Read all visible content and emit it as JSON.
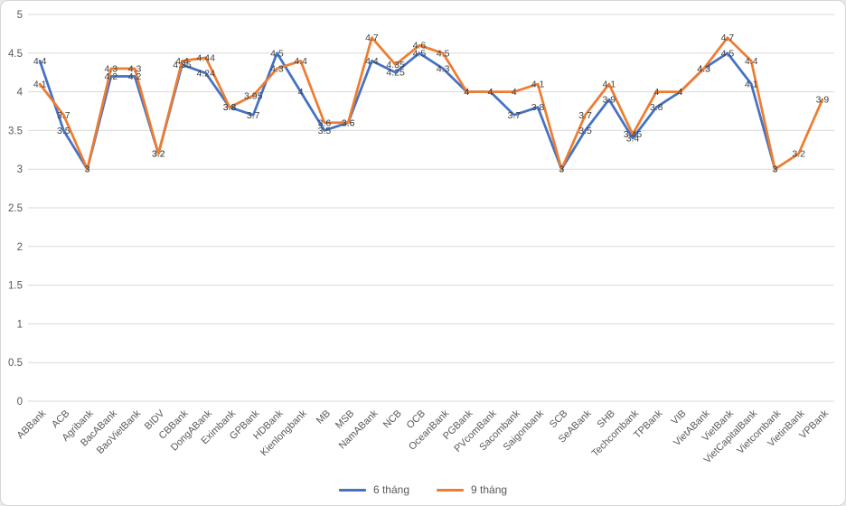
{
  "chart_data": {
    "type": "line",
    "title": "",
    "xlabel": "",
    "ylabel": "",
    "ylim": [
      0,
      5
    ],
    "ytick_step": 0.5,
    "grid": true,
    "legend_position": "bottom",
    "data_labels_position": "center",
    "categories": [
      "ABBank",
      "ACB",
      "Agribank",
      "BacABank",
      "BaoVietBank",
      "BIDV",
      "CBBank",
      "DongABank",
      "Eximbank",
      "GPBank",
      "HDBank",
      "Kienlongbank",
      "MB",
      "MSB",
      "NamABank",
      "NCB",
      "OCB",
      "OceanBank",
      "PGBank",
      "PVcomBank",
      "Sacombank",
      "Saigonbank",
      "SCB",
      "SeABank",
      "SHB",
      "Techcombank",
      "TPBank",
      "VIB",
      "VietABank",
      "VietBank",
      "VietCapitalBank",
      "Vietcombank",
      "VietinBank",
      "VPBank"
    ],
    "series": [
      {
        "name": "6 tháng",
        "color": "#4472C4",
        "values": [
          4.4,
          3.5,
          3,
          4.2,
          4.2,
          3.2,
          4.35,
          4.24,
          3.8,
          3.7,
          4.5,
          4,
          3.5,
          3.6,
          4.4,
          4.25,
          4.5,
          4.3,
          4,
          4,
          3.7,
          3.8,
          3,
          3.5,
          3.9,
          3.4,
          3.8,
          4,
          4.3,
          4.5,
          4.1,
          3,
          null,
          null
        ]
      },
      {
        "name": "9 tháng",
        "color": "#ED7D31",
        "values": [
          4.1,
          3.7,
          3,
          4.3,
          4.3,
          3.2,
          4.4,
          4.44,
          3.8,
          3.95,
          4.3,
          4.4,
          3.6,
          3.6,
          4.7,
          4.35,
          4.6,
          4.5,
          4,
          4,
          4,
          4.1,
          3,
          3.7,
          4.1,
          3.45,
          4,
          4,
          4.3,
          4.7,
          4.4,
          3,
          3.2,
          3.9
        ]
      }
    ],
    "colors": {
      "gridline": "#D9D9D9",
      "axis_labels": "#595959",
      "data_labels": "#404040",
      "background": "#FFFFFF"
    }
  }
}
